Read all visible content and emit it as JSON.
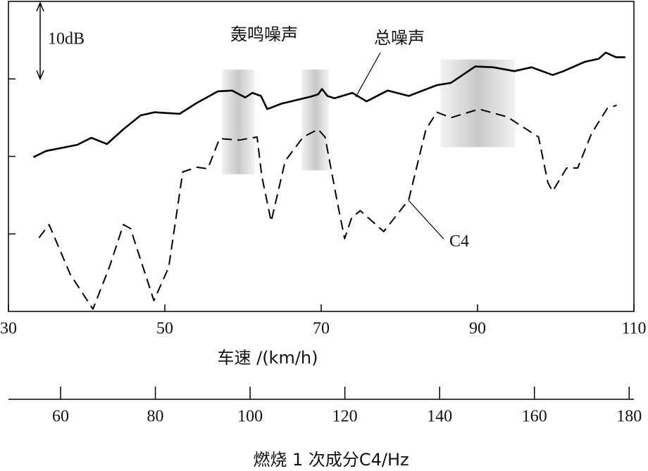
{
  "chart_data": {
    "type": "line",
    "xlabel": "车速 /(km/h)",
    "x2label": "燃烧 1 次成分C4/Hz",
    "xlim": [
      30,
      110
    ],
    "xticks": [
      30,
      50,
      70,
      90,
      110
    ],
    "x2lim": [
      49,
      181
    ],
    "x2ticks": [
      60,
      80,
      100,
      120,
      140,
      160,
      180
    ],
    "ylim": [
      0,
      40
    ],
    "yticks": [
      10,
      20,
      30
    ],
    "scale_bar": {
      "value": 10,
      "label": "10dB"
    },
    "annotations": [
      "轰鸣噪声"
    ],
    "highlight_regions": [
      {
        "x": [
          57.3,
          61.5
        ],
        "y": [
          17.7,
          31.2
        ]
      },
      {
        "x": [
          67.5,
          71.0
        ],
        "y": [
          18.2,
          31.2
        ]
      },
      {
        "x": [
          85.3,
          94.8
        ],
        "y": [
          21.2,
          32.5
        ]
      }
    ],
    "series": [
      {
        "name": "总噪声",
        "color": "#000000",
        "line_style": "solid",
        "x": [
          33.2,
          34.8,
          38.8,
          40.6,
          42.6,
          44.7,
          46.9,
          48.7,
          51.9,
          54.1,
          56.8,
          58.6,
          60.3,
          61.2,
          62.3,
          63.1,
          64.9,
          68.6,
          69.6,
          70.1,
          70.8,
          71.7,
          74.0,
          75.8,
          78.5,
          81.2,
          84.8,
          86.6,
          89.7,
          92.0,
          94.7,
          96.9,
          99.6,
          101.0,
          103.7,
          105.5,
          106.4,
          107.7,
          108.9
        ],
        "values": [
          19.9,
          20.7,
          21.5,
          22.4,
          21.6,
          23.5,
          25.3,
          25.7,
          25.5,
          26.9,
          28.4,
          28.5,
          27.6,
          28.2,
          27.8,
          26.1,
          26.8,
          27.7,
          28.0,
          28.7,
          27.8,
          27.5,
          28.2,
          27.1,
          28.5,
          27.8,
          29.2,
          29.5,
          31.6,
          31.5,
          31.0,
          31.5,
          30.5,
          31.0,
          32.2,
          32.6,
          33.4,
          32.8,
          32.8
        ]
      },
      {
        "name": "C4",
        "color": "#000000",
        "line_style": "dashed",
        "x": [
          33.9,
          35.2,
          37.9,
          40.8,
          42.9,
          44.7,
          45.6,
          48.6,
          50.5,
          52.3,
          54.1,
          55.5,
          57.0,
          59.5,
          61.8,
          62.4,
          63.6,
          65.4,
          67.7,
          69.6,
          70.5,
          72.1,
          73.0,
          73.9,
          75.0,
          78.0,
          81.2,
          83.4,
          84.8,
          86.6,
          90.2,
          93.8,
          97.8,
          99.0,
          99.6,
          101.4,
          102.8,
          104.6,
          106.6,
          107.8
        ],
        "values": [
          9.5,
          11.2,
          4.8,
          0.3,
          5.7,
          11.2,
          10.7,
          1.4,
          5.7,
          18.0,
          18.6,
          18.4,
          22.3,
          22.1,
          22.5,
          17.5,
          11.6,
          19.4,
          22.5,
          23.5,
          22.5,
          13.9,
          9.4,
          12.1,
          13.0,
          10.3,
          14.4,
          23.5,
          25.7,
          25.0,
          26.1,
          25.1,
          22.5,
          16.6,
          15.5,
          18.5,
          18.5,
          23.0,
          26.2,
          26.6
        ]
      }
    ]
  }
}
